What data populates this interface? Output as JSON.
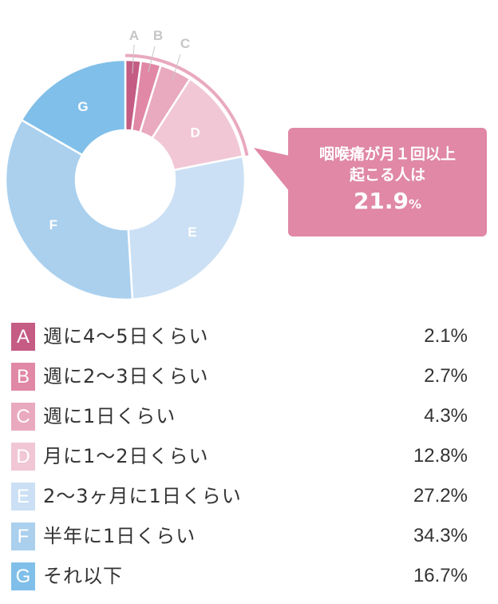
{
  "chart_data": {
    "type": "pie",
    "subtype": "donut",
    "title": "",
    "categories": [
      "A",
      "B",
      "C",
      "D",
      "E",
      "F",
      "G"
    ],
    "labels": [
      "週に4〜5日くらい",
      "週に2〜3日くらい",
      "週に1日くらい",
      "月に1〜2日くらい",
      "2〜3ヶ月に1日くらい",
      "半年に1日くらい",
      "それ以下"
    ],
    "values": [
      2.1,
      2.7,
      4.3,
      12.8,
      27.2,
      34.3,
      16.7
    ],
    "unit": "%",
    "colors": [
      "#c45c83",
      "#e088a5",
      "#e9a9bf",
      "#f1c7d5",
      "#cbe0f4",
      "#aad0ee",
      "#80bfe9"
    ],
    "start_angle": "12 o'clock, clockwise",
    "annotation": {
      "covers": [
        "A",
        "B",
        "C",
        "D"
      ],
      "text_line1": "咽喉痛が月１回以上",
      "text_line2": "起こる人は",
      "value": "21.9",
      "unit": "%"
    },
    "legend_position": "bottom"
  },
  "callout": {
    "line1": "咽喉痛が月１回以上",
    "line2": "起こる人は",
    "value": "21.9",
    "unit": "%"
  },
  "legend": [
    {
      "key": "A",
      "label": "週に4〜5日くらい",
      "value": "2.1%"
    },
    {
      "key": "B",
      "label": "週に2〜3日くらい",
      "value": "2.7%"
    },
    {
      "key": "C",
      "label": "週に1日くらい",
      "value": "4.3%"
    },
    {
      "key": "D",
      "label": "月に1〜2日くらい",
      "value": "12.8%"
    },
    {
      "key": "E",
      "label": "2〜3ヶ月に1日くらい",
      "value": "27.2%"
    },
    {
      "key": "F",
      "label": "半年に1日くらい",
      "value": "34.3%"
    },
    {
      "key": "G",
      "label": "それ以下",
      "value": "16.7%"
    }
  ]
}
